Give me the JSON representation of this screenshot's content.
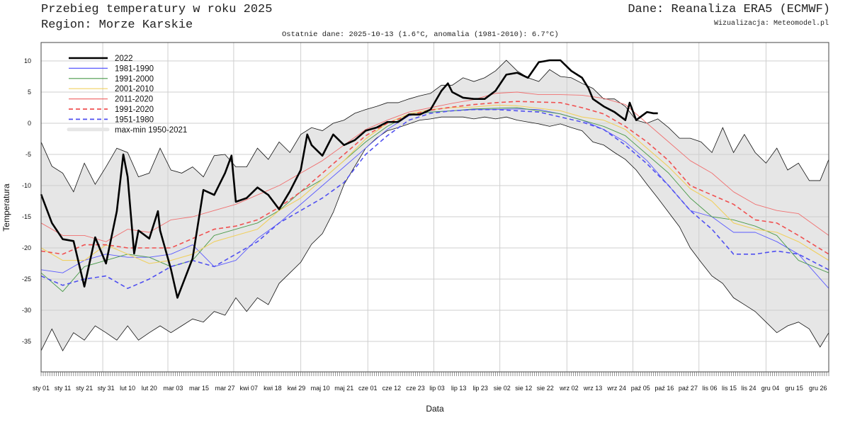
{
  "header": {
    "title": "Przebieg temperatury w roku 2025",
    "region": "Region: Morze Karskie",
    "source": "Dane: Reanaliza ERA5 (ECMWF)",
    "visualization": "Wizualizacja: Meteomodel.pl",
    "last_data": "Ostatnie dane: 2025-10-13 (1.6°C, anomalia (1981-2010): 6.7°C)"
  },
  "chart_data": {
    "type": "line",
    "title": "Przebieg temperatury w roku 2025",
    "xlabel": "Data",
    "ylabel": "Temperatura",
    "ylim": [
      -39,
      13
    ],
    "xlim_days": [
      0,
      365
    ],
    "grid": true,
    "legend_position": "top-left",
    "yticks": [
      10,
      5,
      0,
      -5,
      -10,
      -15,
      -20,
      -25,
      -30,
      -35
    ],
    "xticks": [
      {
        "day": 0,
        "label": "sty 01"
      },
      {
        "day": 10,
        "label": "sty 11"
      },
      {
        "day": 20,
        "label": "sty 21"
      },
      {
        "day": 30,
        "label": "sty 31"
      },
      {
        "day": 40,
        "label": "lut 10"
      },
      {
        "day": 50,
        "label": "lut 20"
      },
      {
        "day": 61,
        "label": "mar 03"
      },
      {
        "day": 73,
        "label": "mar 15"
      },
      {
        "day": 85,
        "label": "mar 27"
      },
      {
        "day": 96,
        "label": "kwi 07"
      },
      {
        "day": 107,
        "label": "kwi 18"
      },
      {
        "day": 118,
        "label": "kwi 29"
      },
      {
        "day": 129,
        "label": "maj 10"
      },
      {
        "day": 140,
        "label": "maj 21"
      },
      {
        "day": 151,
        "label": "cze 01"
      },
      {
        "day": 162,
        "label": "cze 12"
      },
      {
        "day": 173,
        "label": "cze 23"
      },
      {
        "day": 183,
        "label": "lip 03"
      },
      {
        "day": 193,
        "label": "lip 13"
      },
      {
        "day": 203,
        "label": "lip 23"
      },
      {
        "day": 213,
        "label": "sie 02"
      },
      {
        "day": 223,
        "label": "sie 12"
      },
      {
        "day": 233,
        "label": "sie 22"
      },
      {
        "day": 244,
        "label": "wrz 02"
      },
      {
        "day": 255,
        "label": "wrz 13"
      },
      {
        "day": 266,
        "label": "wrz 24"
      },
      {
        "day": 277,
        "label": "paź 05"
      },
      {
        "day": 288,
        "label": "paź 16"
      },
      {
        "day": 299,
        "label": "paź 27"
      },
      {
        "day": 309,
        "label": "lis 06"
      },
      {
        "day": 318,
        "label": "lis 15"
      },
      {
        "day": 327,
        "label": "lis 24"
      },
      {
        "day": 337,
        "label": "gru 04"
      },
      {
        "day": 348,
        "label": "gru 15"
      },
      {
        "day": 359,
        "label": "gru 26"
      }
    ],
    "envelope": {
      "name": "max-min 1950-2021",
      "color": "#e6e6e6",
      "days": [
        0,
        5,
        10,
        15,
        20,
        25,
        30,
        35,
        40,
        45,
        50,
        55,
        60,
        65,
        70,
        75,
        80,
        85,
        90,
        95,
        100,
        105,
        110,
        115,
        120,
        125,
        130,
        135,
        140,
        145,
        150,
        155,
        160,
        165,
        170,
        175,
        180,
        185,
        190,
        195,
        200,
        205,
        210,
        215,
        220,
        225,
        230,
        235,
        240,
        245,
        250,
        255,
        260,
        265,
        270,
        275,
        280,
        285,
        290,
        295,
        300,
        305,
        310,
        315,
        320,
        325,
        330,
        335,
        340,
        345,
        350,
        355,
        360,
        364
      ],
      "max": [
        -3,
        -6.9,
        -8,
        -11,
        -6.4,
        -9.8,
        -7,
        -4,
        -4.7,
        -8.6,
        -8,
        -4,
        -7.5,
        -8,
        -7,
        -8.6,
        -5.2,
        -5,
        -7,
        -7,
        -4,
        -5.8,
        -3,
        -4.7,
        -1.8,
        -0.7,
        -1.2,
        0,
        0.5,
        1.6,
        2.2,
        2.7,
        3.3,
        3.3,
        3.9,
        4.4,
        4.8,
        6.1,
        6.1,
        7.3,
        6.7,
        7.3,
        8.4,
        10.1,
        8.4,
        7.3,
        6.7,
        8.6,
        7.5,
        7.3,
        6.4,
        5.6,
        3.9,
        3.9,
        2.7,
        0.5,
        0,
        0.7,
        -0.7,
        -2.4,
        -2.4,
        -3,
        -4.7,
        -0.7,
        -4.7,
        -1.8,
        -4.7,
        -6.4,
        -4,
        -7.5,
        -6.4,
        -9.2,
        -9.2,
        -5.8
      ],
      "min": [
        -36.5,
        -33,
        -36.5,
        -33.6,
        -34.8,
        -32.5,
        -33.6,
        -34.8,
        -32.5,
        -34.8,
        -33.6,
        -32.5,
        -33.6,
        -32.5,
        -31.4,
        -31.9,
        -30.2,
        -30.8,
        -28,
        -30.2,
        -28,
        -29.1,
        -25.7,
        -24,
        -22.3,
        -19.4,
        -17.7,
        -14.3,
        -9.8,
        -6.9,
        -4,
        -2.4,
        -1.2,
        -0.7,
        -0.1,
        0.5,
        0.7,
        1,
        1,
        1,
        0.7,
        1,
        0.7,
        1,
        0.5,
        0.2,
        -0.1,
        -0.5,
        -0.1,
        -0.7,
        -1.2,
        -3,
        -3.5,
        -4.7,
        -5.8,
        -7.5,
        -9.8,
        -12,
        -14.3,
        -16.6,
        -20,
        -22.3,
        -24.5,
        -25.7,
        -28,
        -29.1,
        -30.2,
        -31.9,
        -33.6,
        -32.5,
        -31.9,
        -33,
        -35.9,
        -33.6
      ]
    },
    "series": [
      {
        "name": "2022",
        "color": "#000000",
        "style": "solid",
        "width": 2.6,
        "days": [
          0,
          5,
          10,
          15,
          20,
          25,
          30,
          35,
          38,
          40,
          43,
          45,
          50,
          54,
          55,
          60,
          63,
          65,
          70,
          75,
          80,
          85,
          88,
          90,
          95,
          100,
          105,
          110,
          115,
          120,
          123,
          125,
          130,
          135,
          140,
          145,
          150,
          155,
          160,
          165,
          170,
          175,
          180,
          185,
          188,
          190,
          195,
          200,
          205,
          210,
          215,
          220,
          225,
          230,
          235,
          240,
          245,
          250,
          253,
          255,
          260,
          265,
          270,
          272,
          275,
          280,
          283,
          285
        ],
        "values": [
          -11.4,
          -16,
          -18.6,
          -18.9,
          -26.2,
          -18.3,
          -22.5,
          -14.1,
          -5,
          -8.6,
          -20.9,
          -17.2,
          -18.5,
          -14.1,
          -17.2,
          -23.4,
          -28,
          -26.2,
          -21.7,
          -10.7,
          -11.5,
          -8,
          -5.2,
          -12.6,
          -12,
          -10.3,
          -11.5,
          -13.8,
          -10.9,
          -7.5,
          -1.8,
          -3.5,
          -5.2,
          -1.8,
          -3.5,
          -2.7,
          -1.2,
          -0.7,
          0.2,
          0.2,
          1.4,
          1.4,
          2.2,
          5.2,
          6.4,
          5,
          4.1,
          3.9,
          3.9,
          5.2,
          7.8,
          8.1,
          7.3,
          9.8,
          10.1,
          10.1,
          8.4,
          7.3,
          5.6,
          3.9,
          2.7,
          1.8,
          0.5,
          3.3,
          0.5,
          1.8,
          1.6,
          1.6
        ]
      },
      {
        "name": "1981-1990",
        "color": "#5a5aff",
        "style": "solid",
        "width": 0.9,
        "days": [
          0,
          10,
          20,
          30,
          40,
          50,
          60,
          70,
          80,
          90,
          100,
          110,
          120,
          130,
          140,
          150,
          160,
          170,
          180,
          190,
          200,
          210,
          220,
          230,
          240,
          250,
          260,
          270,
          280,
          290,
          300,
          310,
          320,
          330,
          340,
          350,
          364
        ],
        "values": [
          -23.5,
          -24,
          -22,
          -21,
          -21.5,
          -21.5,
          -21,
          -19.5,
          -23,
          -22,
          -18.5,
          -16,
          -13,
          -10,
          -7,
          -4,
          -1,
          1.2,
          1.8,
          2,
          2.2,
          2.2,
          2.3,
          2.2,
          1.5,
          0.5,
          -1,
          -3,
          -6,
          -10,
          -14,
          -15,
          -17.5,
          -17.5,
          -19,
          -21,
          -26.5
        ]
      },
      {
        "name": "1991-2000",
        "color": "#4a9a4a",
        "style": "solid",
        "width": 0.9,
        "days": [
          0,
          10,
          20,
          30,
          40,
          50,
          60,
          70,
          80,
          90,
          100,
          110,
          120,
          130,
          140,
          150,
          160,
          170,
          180,
          190,
          200,
          210,
          220,
          230,
          240,
          250,
          260,
          270,
          280,
          290,
          300,
          310,
          320,
          330,
          340,
          350,
          364
        ],
        "values": [
          -24,
          -27,
          -23,
          -22,
          -21,
          -21.5,
          -23,
          -22,
          -18,
          -17,
          -16,
          -14,
          -11,
          -9,
          -6,
          -3,
          -0.5,
          1.3,
          1.8,
          2,
          2.3,
          2.4,
          2.5,
          2,
          1.5,
          0.5,
          -0.5,
          -2,
          -5,
          -8,
          -12,
          -15,
          -15.5,
          -16.5,
          -18,
          -22,
          -24
        ]
      },
      {
        "name": "2001-2010",
        "color": "#f0d060",
        "style": "solid",
        "width": 1.1,
        "days": [
          0,
          10,
          20,
          30,
          40,
          50,
          60,
          70,
          80,
          90,
          100,
          110,
          120,
          130,
          140,
          150,
          160,
          170,
          180,
          190,
          200,
          210,
          220,
          230,
          240,
          250,
          260,
          270,
          280,
          290,
          300,
          310,
          320,
          330,
          340,
          350,
          364
        ],
        "values": [
          -20,
          -22,
          -22,
          -19.5,
          -21,
          -22.5,
          -22,
          -21,
          -19,
          -18,
          -17,
          -14,
          -12,
          -9,
          -6,
          -2.5,
          0,
          1.5,
          2.2,
          2.5,
          2.6,
          2.9,
          2.8,
          2.4,
          2,
          1,
          0.5,
          -1,
          -4,
          -7,
          -10.5,
          -12.5,
          -16,
          -17,
          -17.5,
          -19,
          -22
        ]
      },
      {
        "name": "2011-2020",
        "color": "#f07070",
        "style": "solid",
        "width": 0.9,
        "days": [
          0,
          10,
          20,
          30,
          40,
          50,
          60,
          70,
          80,
          90,
          100,
          110,
          120,
          130,
          140,
          150,
          160,
          170,
          180,
          190,
          200,
          210,
          220,
          230,
          240,
          250,
          260,
          270,
          280,
          290,
          300,
          310,
          320,
          330,
          340,
          350,
          364
        ],
        "values": [
          -16,
          -18,
          -18,
          -19,
          -17,
          -17.5,
          -15.5,
          -15,
          -14,
          -13,
          -11.5,
          -10,
          -8,
          -6,
          -3.5,
          -1,
          0.5,
          1.8,
          2.5,
          3.2,
          3.8,
          4.8,
          5,
          4.6,
          4.6,
          4.5,
          4,
          3,
          0,
          -3,
          -6,
          -8,
          -11,
          -13,
          -14,
          -14.5,
          -18
        ]
      },
      {
        "name": "1991-2020",
        "color": "#f05050",
        "style": "dashed",
        "width": 1.6,
        "days": [
          0,
          10,
          20,
          30,
          40,
          50,
          60,
          70,
          80,
          90,
          100,
          110,
          120,
          130,
          140,
          150,
          160,
          170,
          180,
          190,
          200,
          210,
          220,
          230,
          240,
          250,
          260,
          270,
          280,
          290,
          300,
          310,
          320,
          330,
          340,
          350,
          364
        ],
        "values": [
          -20.5,
          -21,
          -19.5,
          -19.5,
          -20,
          -20,
          -20,
          -18.5,
          -17,
          -16.5,
          -15.5,
          -13.5,
          -11,
          -8,
          -5,
          -2,
          0,
          1.3,
          2.1,
          2.6,
          3,
          3.3,
          3.5,
          3.4,
          3.3,
          2.5,
          1.5,
          -0.5,
          -3,
          -6,
          -10,
          -11.5,
          -13,
          -15.5,
          -16,
          -18,
          -21
        ]
      },
      {
        "name": "1951-1980",
        "color": "#5050f0",
        "style": "dashed",
        "width": 1.6,
        "days": [
          0,
          10,
          20,
          30,
          40,
          50,
          60,
          70,
          80,
          90,
          100,
          110,
          120,
          130,
          140,
          150,
          160,
          170,
          180,
          190,
          200,
          210,
          220,
          230,
          240,
          250,
          260,
          270,
          280,
          290,
          300,
          310,
          320,
          330,
          340,
          350,
          364
        ],
        "values": [
          -24.5,
          -26,
          -25,
          -24.5,
          -26.5,
          -25,
          -23,
          -22,
          -23,
          -21,
          -19,
          -16,
          -14,
          -12,
          -9.5,
          -5,
          -2,
          0.5,
          1.6,
          2,
          2.2,
          2.2,
          2,
          1.8,
          1,
          0.2,
          -1,
          -3.5,
          -6.5,
          -10,
          -14,
          -17,
          -21,
          -21,
          -20.5,
          -21,
          -23.5
        ]
      }
    ]
  }
}
